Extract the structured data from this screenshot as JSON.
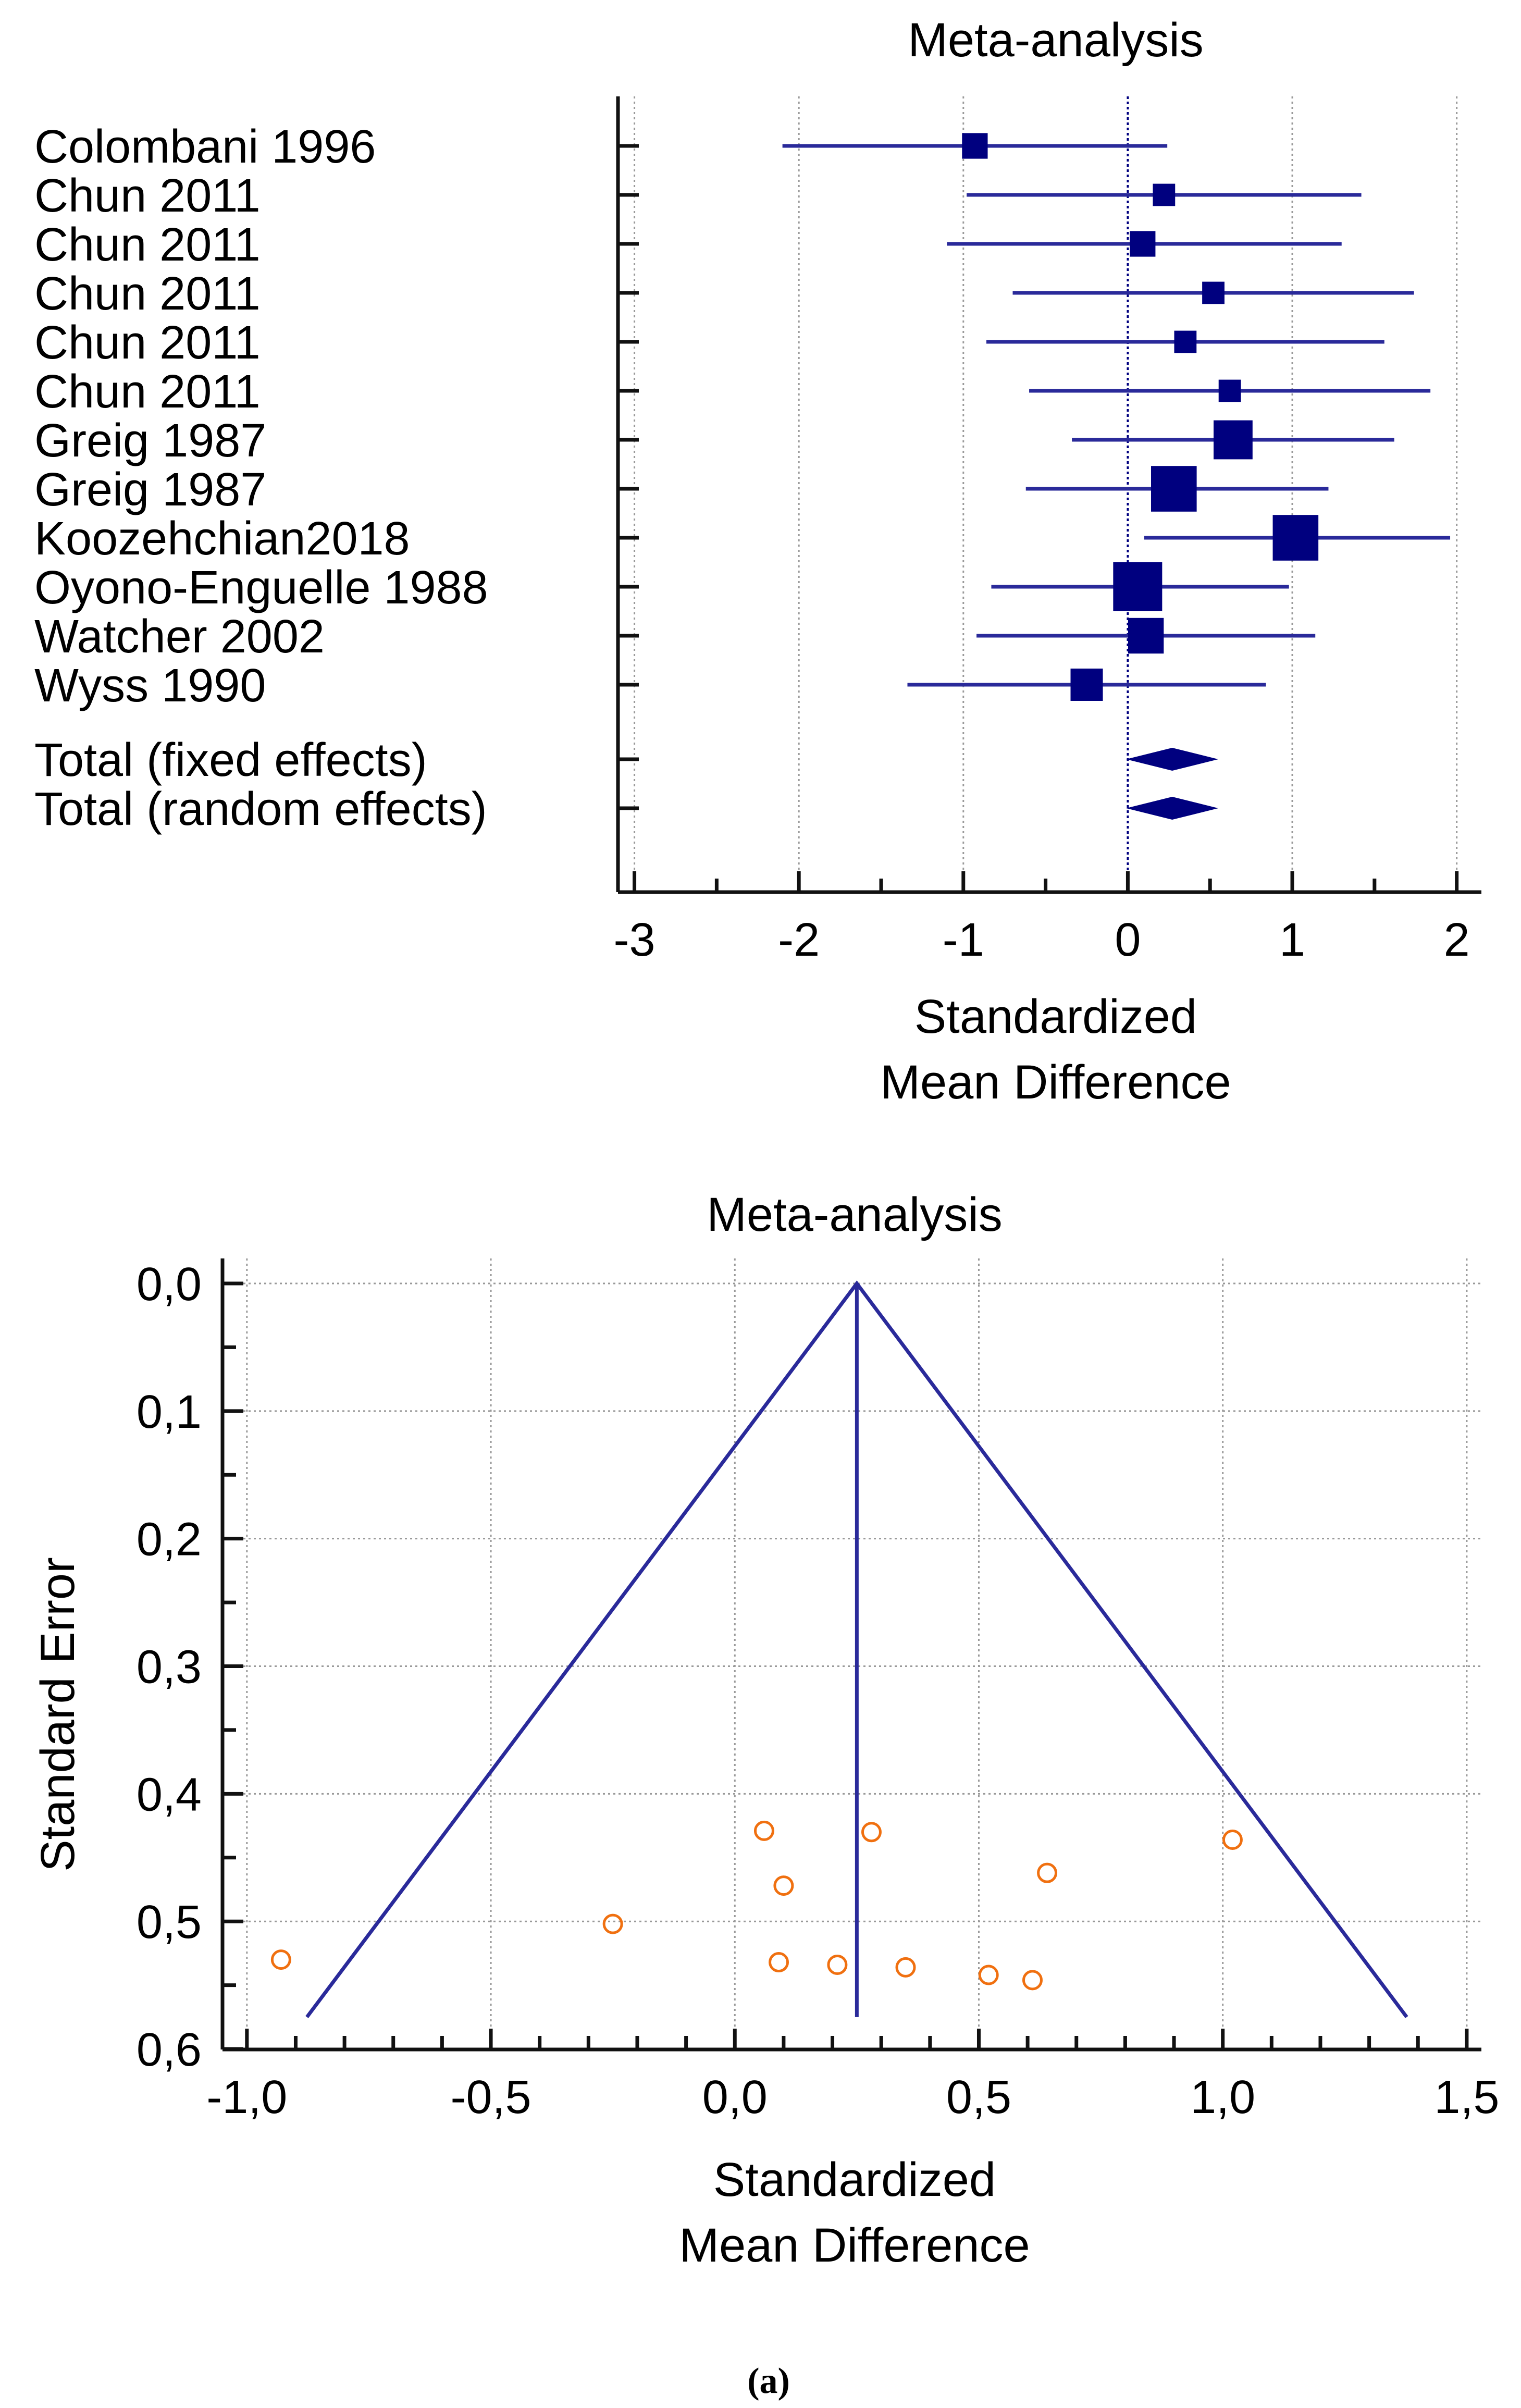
{
  "colors": {
    "marker": "#00007f",
    "ci_line": "#2a2a9a",
    "funnel_line": "#2a2a9a",
    "study_point": "#f07010",
    "grid": "#999999",
    "axis": "#111111"
  },
  "chart_data": [
    {
      "type": "forest",
      "title": "Meta-analysis",
      "xlabel_lines": [
        "Standardized",
        "Mean Difference"
      ],
      "xlim": [
        -3.1,
        2.15
      ],
      "xticks": [
        -3,
        -2,
        -1,
        0,
        1,
        2
      ],
      "xtick_labels": [
        "-3",
        "-2",
        "-1",
        "0",
        "1",
        "2"
      ],
      "grid": true,
      "reference_line": 0,
      "studies": [
        {
          "label": "Colombani 1996",
          "estimate": -0.93,
          "ci_low": -2.1,
          "ci_high": 0.24,
          "weight": 3
        },
        {
          "label": "Chun 2011",
          "estimate": 0.22,
          "ci_low": -0.98,
          "ci_high": 1.42,
          "weight": 2
        },
        {
          "label": "Chun 2011",
          "estimate": 0.09,
          "ci_low": -1.1,
          "ci_high": 1.3,
          "weight": 3
        },
        {
          "label": "Chun 2011",
          "estimate": 0.52,
          "ci_low": -0.7,
          "ci_high": 1.74,
          "weight": 2
        },
        {
          "label": "Chun 2011",
          "estimate": 0.35,
          "ci_low": -0.86,
          "ci_high": 1.56,
          "weight": 2
        },
        {
          "label": "Chun 2011",
          "estimate": 0.62,
          "ci_low": -0.6,
          "ci_high": 1.84,
          "weight": 2
        },
        {
          "label": "Greig 1987",
          "estimate": 0.64,
          "ci_low": -0.34,
          "ci_high": 1.62,
          "weight": 7
        },
        {
          "label": "Greig 1987",
          "estimate": 0.28,
          "ci_low": -0.62,
          "ci_high": 1.22,
          "weight": 9
        },
        {
          "label": "Koozehchian2018",
          "estimate": 1.02,
          "ci_low": 0.1,
          "ci_high": 1.96,
          "weight": 9
        },
        {
          "label": "Oyono-Enguelle 1988",
          "estimate": 0.06,
          "ci_low": -0.83,
          "ci_high": 0.98,
          "weight": 10
        },
        {
          "label": "Watcher 2002",
          "estimate": 0.11,
          "ci_low": -0.92,
          "ci_high": 1.14,
          "weight": 6
        },
        {
          "label": "Wyss 1990",
          "estimate": -0.25,
          "ci_low": -1.34,
          "ci_high": 0.84,
          "weight": 5
        }
      ],
      "totals": [
        {
          "label": "Total (fixed effects)",
          "estimate": 0.27,
          "ci_low": -0.01,
          "ci_high": 0.55
        },
        {
          "label": "Total (random effects)",
          "estimate": 0.27,
          "ci_low": -0.01,
          "ci_high": 0.55
        }
      ]
    },
    {
      "type": "funnel",
      "title": "Meta-analysis",
      "xlabel_lines": [
        "Standardized",
        "Mean Difference"
      ],
      "ylabel": "Standard Error",
      "xlim": [
        -1.05,
        1.53
      ],
      "ylim": [
        0.0,
        0.62
      ],
      "y_inverted": true,
      "xticks": [
        -1.0,
        -0.5,
        0.0,
        0.5,
        1.0,
        1.5
      ],
      "xtick_labels": [
        "-1,0",
        "-0,5",
        "0,0",
        "0,5",
        "1,0",
        "1,5"
      ],
      "yticks": [
        0.0,
        0.1,
        0.2,
        0.3,
        0.4,
        0.5,
        0.6
      ],
      "ytick_labels": [
        "0,0",
        "0,1",
        "0,2",
        "0,3",
        "0,4",
        "0,5",
        "0,6"
      ],
      "grid": true,
      "pooled_estimate": 0.25,
      "funnel_se_max": 0.575,
      "points": [
        {
          "x": -0.93,
          "se": 0.53
        },
        {
          "x": -0.25,
          "se": 0.502
        },
        {
          "x": 0.06,
          "se": 0.429
        },
        {
          "x": 0.1,
          "se": 0.472
        },
        {
          "x": 0.09,
          "se": 0.532
        },
        {
          "x": 0.21,
          "se": 0.534
        },
        {
          "x": 0.28,
          "se": 0.43
        },
        {
          "x": 0.35,
          "se": 0.536
        },
        {
          "x": 0.52,
          "se": 0.542
        },
        {
          "x": 0.61,
          "se": 0.546
        },
        {
          "x": 0.64,
          "se": 0.462
        },
        {
          "x": 1.02,
          "se": 0.436
        }
      ]
    }
  ],
  "caption": "(a)"
}
